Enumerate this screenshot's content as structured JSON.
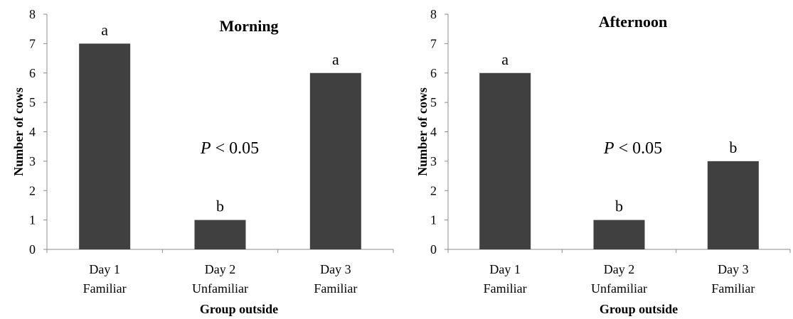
{
  "chart_data": [
    {
      "type": "bar",
      "title": "Morning",
      "ylabel": "Number of cows",
      "xlabel": "Group outside",
      "ylim": [
        0,
        8
      ],
      "yticks": [
        "0",
        "1",
        "2",
        "3",
        "4",
        "5",
        "6",
        "7",
        "8"
      ],
      "categories": [
        [
          "Day 1",
          "Familiar"
        ],
        [
          "Day 2",
          "Unfamiliar"
        ],
        [
          "Day 3",
          "Familiar"
        ]
      ],
      "values": [
        7,
        1,
        6
      ],
      "labels": [
        "a",
        "b",
        "a"
      ],
      "annotation_italic": "P",
      "annotation_rest": " < 0.05",
      "bar_color": "#404040"
    },
    {
      "type": "bar",
      "title": "Afternoon",
      "ylabel": "Number of cows",
      "xlabel": "Group outside",
      "ylim": [
        0,
        8
      ],
      "yticks": [
        "0",
        "1",
        "2",
        "3",
        "4",
        "5",
        "6",
        "7",
        "8"
      ],
      "categories": [
        [
          "Day 1",
          "Familiar"
        ],
        [
          "Day 2",
          "Unfamiliar"
        ],
        [
          "Day 3",
          "Familiar"
        ]
      ],
      "values": [
        6,
        1,
        3
      ],
      "labels": [
        "a",
        "b",
        "b"
      ],
      "annotation_italic": "P",
      "annotation_rest": " < 0.05",
      "bar_color": "#404040"
    }
  ]
}
